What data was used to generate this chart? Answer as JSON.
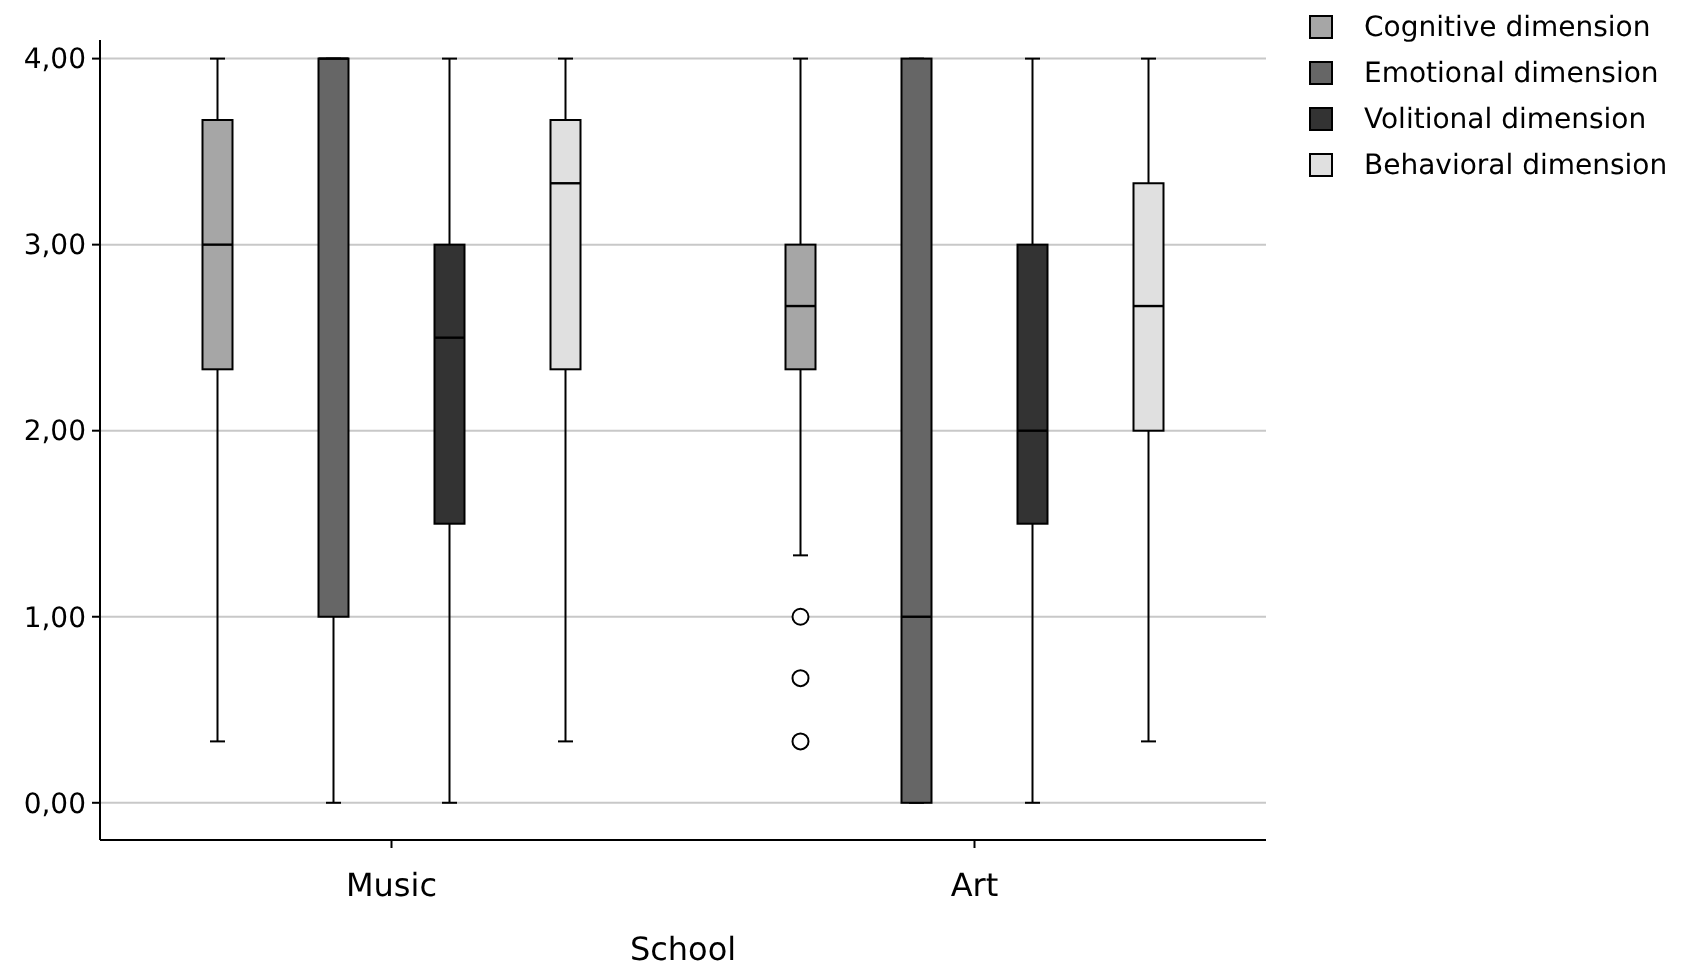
{
  "chart_data": {
    "type": "box",
    "xlabel": "School",
    "categories": [
      "Music",
      "Art"
    ],
    "ylim": [
      -0.2,
      4.1
    ],
    "yticks": [
      {
        "value": 0,
        "label": "0,00"
      },
      {
        "value": 1,
        "label": "1,00"
      },
      {
        "value": 2,
        "label": "2,00"
      },
      {
        "value": 3,
        "label": "3,00"
      },
      {
        "value": 4,
        "label": "4,00"
      }
    ],
    "grid": "y",
    "legend": "top right",
    "series": [
      {
        "name": "Cognitive dimension",
        "color": "#a6a6a6",
        "boxes": [
          {
            "low": 0.33,
            "q1": 2.33,
            "median": 3,
            "q3": 3.67,
            "high": 4
          },
          {
            "low": 1.33,
            "q1": 2.33,
            "median": 2.67,
            "q3": 3,
            "high": 4,
            "outliers": [
              1,
              0.67,
              0.33
            ]
          }
        ]
      },
      {
        "name": "Emotional dimension",
        "color": "#666666",
        "boxes": [
          {
            "low": 0,
            "q1": 1,
            "median": 4,
            "q3": 4,
            "high": 4
          },
          {
            "low": 0,
            "q1": 0,
            "median": 1,
            "q3": 4,
            "high": 4
          }
        ]
      },
      {
        "name": "Volitional dimension",
        "color": "#333333",
        "boxes": [
          {
            "low": 0,
            "q1": 1.5,
            "median": 2.5,
            "q3": 3,
            "high": 4
          },
          {
            "low": 0,
            "q1": 1.5,
            "median": 2,
            "q3": 3,
            "high": 4
          }
        ]
      },
      {
        "name": "Behavioral dimension",
        "color": "#e0e0e0",
        "boxes": [
          {
            "low": 0.33,
            "q1": 2.33,
            "median": 3.33,
            "q3": 3.67,
            "high": 4
          },
          {
            "low": 0.33,
            "q1": 2,
            "median": 2.67,
            "q3": 3.33,
            "high": 4
          }
        ]
      }
    ]
  }
}
